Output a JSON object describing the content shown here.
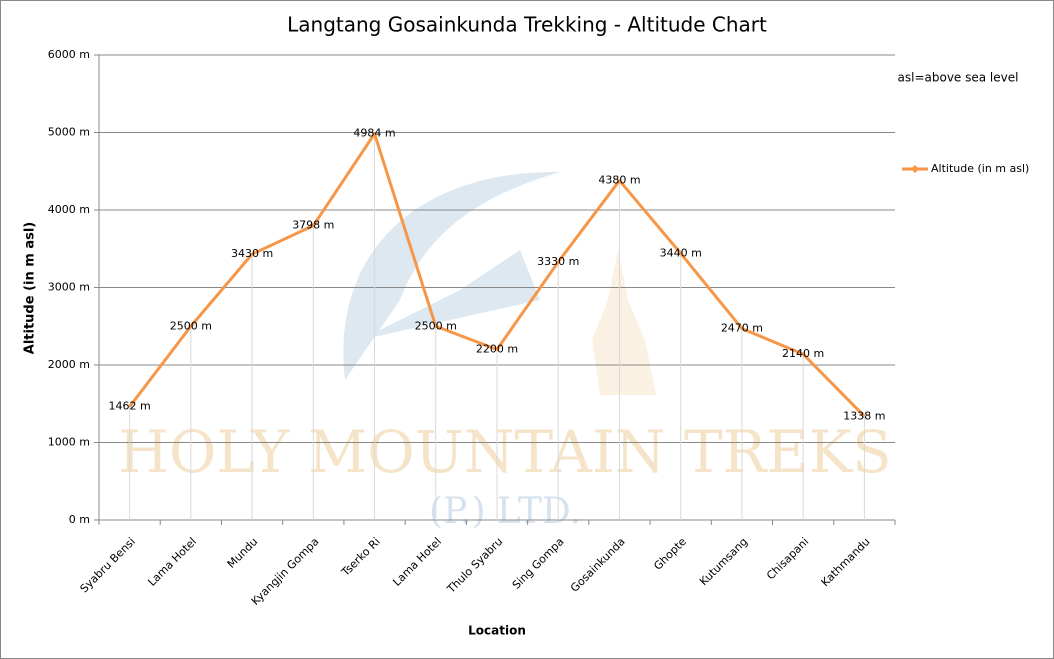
{
  "chart_data": {
    "type": "line",
    "title": "Langtang Gosainkunda Trekking  - Altitude Chart",
    "annotation": "asl=above sea level",
    "watermark": [
      "HOLY MOUNTAIN TREKS",
      "(P.) LTD."
    ],
    "x_label": "Location",
    "y_label": "Altitude (in m asl)",
    "categories": [
      "Syabru Bensi",
      "Lama Hotel",
      "Mundu",
      "Kyangjin Gompa",
      "Tserko Ri",
      "Lama Hotel",
      "Thulo Syabru",
      "Sing Gompa",
      "Gosainkunda",
      "Ghopte",
      "Kutumsang",
      "Chisapani",
      "Kathmandu"
    ],
    "series": [
      {
        "name": "Altitude (in  m asl)",
        "color": "#f79646",
        "values": [
          1462,
          2500,
          3430,
          3798,
          4984,
          2500,
          2200,
          3330,
          4380,
          3440,
          2470,
          2140,
          1338
        ],
        "value_labels": [
          "1462 m",
          "2500 m",
          "3430 m",
          "3798 m",
          "4984 m",
          "2500 m",
          "2200 m",
          "3330 m",
          "4380 m",
          "3440 m",
          "2470 m",
          "2140 m",
          "1338 m"
        ]
      }
    ],
    "ylim": [
      0,
      6000
    ],
    "yticks": [
      {
        "value": 0,
        "label": "0 m"
      },
      {
        "value": 1000,
        "label": "1000 m"
      },
      {
        "value": 2000,
        "label": "2000 m"
      },
      {
        "value": 3000,
        "label": "3000 m"
      },
      {
        "value": 4000,
        "label": "4000 m"
      },
      {
        "value": 5000,
        "label": "5000 m"
      },
      {
        "value": 6000,
        "label": "6000 m"
      }
    ],
    "grid": true,
    "legend": "right"
  }
}
